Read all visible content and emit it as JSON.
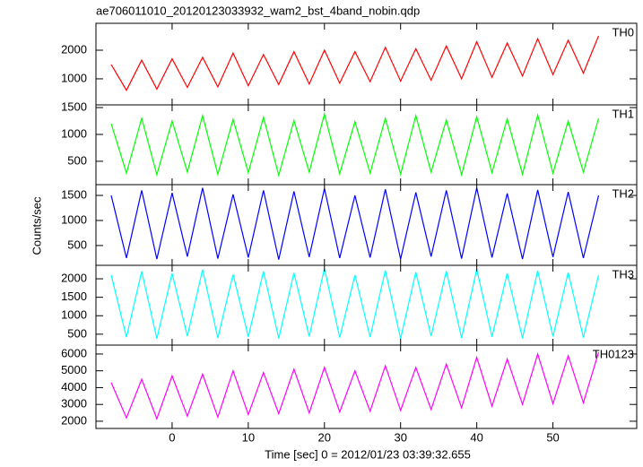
{
  "chart_data": [
    {
      "type": "line",
      "title": "ae706011010_20120123033932_wam2_bst_4band_nobin.qdp",
      "x": [
        -8,
        -6,
        -4,
        -2,
        0,
        2,
        4,
        6,
        8,
        10,
        12,
        14,
        16,
        18,
        20,
        22,
        24,
        26,
        28,
        30,
        32,
        34,
        36,
        38,
        40,
        42,
        44,
        46,
        48,
        50,
        52,
        54,
        56
      ],
      "xlim": [
        -10,
        61
      ],
      "xticks": [
        0,
        10,
        20,
        30,
        40,
        50
      ],
      "ylim": [
        90,
        2940
      ],
      "yticks": [
        1000,
        2000
      ],
      "series": [
        {
          "name": "TH0",
          "color": "#ff0000",
          "values": [
            1500,
            600,
            1650,
            640,
            1700,
            700,
            1750,
            720,
            1900,
            760,
            1850,
            800,
            1950,
            820,
            2000,
            850,
            1950,
            900,
            2100,
            920,
            2050,
            950,
            2150,
            1000,
            2300,
            1050,
            2250,
            1100,
            2400,
            1150,
            2350,
            1200,
            2500
          ]
        }
      ]
    },
    {
      "type": "line",
      "x": [
        -8,
        -6,
        -4,
        -2,
        0,
        2,
        4,
        6,
        8,
        10,
        12,
        14,
        16,
        18,
        20,
        22,
        24,
        26,
        28,
        30,
        32,
        34,
        36,
        38,
        40,
        42,
        44,
        46,
        48,
        50,
        52,
        54,
        56
      ],
      "xlim": [
        -10,
        61
      ],
      "xticks": [
        0,
        10,
        20,
        30,
        40,
        50
      ],
      "ylim": [
        65,
        1550
      ],
      "yticks": [
        500,
        1000,
        1500
      ],
      "series": [
        {
          "name": "TH1",
          "color": "#00ff00",
          "values": [
            1200,
            280,
            1300,
            250,
            1250,
            300,
            1350,
            260,
            1280,
            290,
            1320,
            240,
            1260,
            300,
            1380,
            270,
            1240,
            280,
            1300,
            260,
            1350,
            300,
            1270,
            250,
            1330,
            290,
            1290,
            260,
            1360,
            280,
            1250,
            300,
            1300
          ]
        }
      ]
    },
    {
      "type": "line",
      "x": [
        -8,
        -6,
        -4,
        -2,
        0,
        2,
        4,
        6,
        8,
        10,
        12,
        14,
        16,
        18,
        20,
        22,
        24,
        26,
        28,
        30,
        32,
        34,
        36,
        38,
        40,
        42,
        44,
        46,
        48,
        50,
        52,
        54,
        56
      ],
      "xlim": [
        -10,
        61
      ],
      "xticks": [
        0,
        10,
        20,
        30,
        40,
        50
      ],
      "ylim": [
        105,
        1715
      ],
      "yticks": [
        500,
        1000,
        1500
      ],
      "series": [
        {
          "name": "TH2",
          "color": "#0000ff",
          "values": [
            1500,
            250,
            1600,
            230,
            1550,
            280,
            1650,
            240,
            1520,
            260,
            1600,
            220,
            1580,
            270,
            1640,
            250,
            1500,
            260,
            1620,
            230,
            1560,
            280,
            1600,
            240,
            1650,
            260,
            1540,
            230,
            1610,
            270,
            1570,
            250,
            1500
          ]
        }
      ]
    },
    {
      "type": "line",
      "x": [
        -8,
        -6,
        -4,
        -2,
        0,
        2,
        4,
        6,
        8,
        10,
        12,
        14,
        16,
        18,
        20,
        22,
        24,
        26,
        28,
        30,
        32,
        34,
        36,
        38,
        40,
        42,
        44,
        46,
        48,
        50,
        52,
        54,
        56
      ],
      "xlim": [
        -10,
        61
      ],
      "xticks": [
        0,
        10,
        20,
        30,
        40,
        50
      ],
      "ylim": [
        205,
        2365
      ],
      "yticks": [
        500,
        1000,
        1500,
        2000
      ],
      "series": [
        {
          "name": "TH3",
          "color": "#00ffff",
          "values": [
            2100,
            420,
            2200,
            380,
            2150,
            450,
            2250,
            400,
            2120,
            430,
            2200,
            390,
            2160,
            440,
            2280,
            410,
            2100,
            420,
            2230,
            380,
            2180,
            450,
            2210,
            400,
            2260,
            430,
            2150,
            390,
            2220,
            440,
            2170,
            410,
            2100
          ]
        }
      ]
    },
    {
      "type": "line",
      "xlabel": "Time [sec] 0 = 2012/01/23 03:39:32.655",
      "ylabel": "Counts/sec",
      "x": [
        -8,
        -6,
        -4,
        -2,
        0,
        2,
        4,
        6,
        8,
        10,
        12,
        14,
        16,
        18,
        20,
        22,
        24,
        26,
        28,
        30,
        32,
        34,
        36,
        38,
        40,
        42,
        44,
        46,
        48,
        50,
        52,
        54,
        56
      ],
      "xlim": [
        -10,
        61
      ],
      "xticks": [
        0,
        10,
        20,
        30,
        40,
        50
      ],
      "ylim": [
        1570,
        6530
      ],
      "yticks": [
        2000,
        3000,
        4000,
        5000,
        6000
      ],
      "series": [
        {
          "name": "TH0123",
          "color": "#ff00ff",
          "values": [
            4300,
            2200,
            4500,
            2150,
            4700,
            2300,
            4800,
            2250,
            5000,
            2400,
            4900,
            2450,
            5100,
            2500,
            5200,
            2550,
            5000,
            2600,
            5300,
            2650,
            5200,
            2700,
            5400,
            2800,
            5800,
            2900,
            5700,
            3000,
            6000,
            3050,
            5900,
            3100,
            6100
          ]
        }
      ]
    }
  ]
}
